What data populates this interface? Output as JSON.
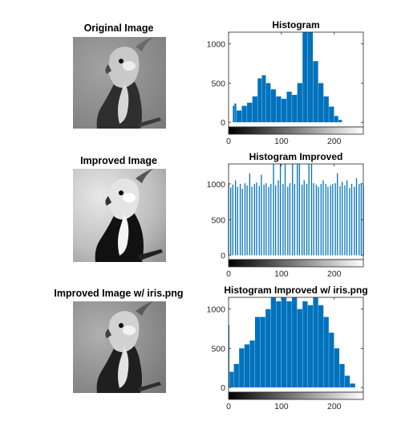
{
  "figure_titles": {
    "original": "Original Image",
    "improved": "Improved Image",
    "improved_iris": "Improved Image w/ iris.png"
  },
  "colors": {
    "bar": "#0072BD",
    "axis": "#262626"
  },
  "chart_data": [
    {
      "type": "bar",
      "title": "Histogram",
      "xlabel": "",
      "ylabel": "",
      "xlim": [
        0,
        255
      ],
      "ylim": [
        -60,
        1150
      ],
      "xticks": [
        "0",
        "100",
        "200"
      ],
      "yticks": [
        "0",
        "500",
        "1000"
      ],
      "grid": false,
      "colorbar": "grayscale 0-255",
      "bins": [
        {
          "range": [
            0,
            7
          ],
          "value": 0
        },
        {
          "range": [
            8,
            10
          ],
          "value": 210
        },
        {
          "range": [
            11,
            14
          ],
          "value": 240
        },
        {
          "range": [
            15,
            24
          ],
          "value": 150
        },
        {
          "range": [
            25,
            34
          ],
          "value": 210
        },
        {
          "range": [
            35,
            44
          ],
          "value": 250
        },
        {
          "range": [
            45,
            54
          ],
          "value": 330
        },
        {
          "range": [
            55,
            62
          ],
          "value": 560
        },
        {
          "range": [
            63,
            70
          ],
          "value": 600
        },
        {
          "range": [
            71,
            79
          ],
          "value": 500
        },
        {
          "range": [
            80,
            89
          ],
          "value": 420
        },
        {
          "range": [
            90,
            99
          ],
          "value": 330
        },
        {
          "range": [
            100,
            109
          ],
          "value": 300
        },
        {
          "range": [
            110,
            119
          ],
          "value": 390
        },
        {
          "range": [
            120,
            129
          ],
          "value": 350
        },
        {
          "range": [
            130,
            139
          ],
          "value": 500
        },
        {
          "range": [
            140,
            149
          ],
          "value": 1150
        },
        {
          "range": [
            150,
            159
          ],
          "value": 1150
        },
        {
          "range": [
            160,
            169
          ],
          "value": 780
        },
        {
          "range": [
            170,
            179
          ],
          "value": 500
        },
        {
          "range": [
            180,
            189
          ],
          "value": 330
        },
        {
          "range": [
            190,
            199
          ],
          "value": 200
        },
        {
          "range": [
            200,
            207
          ],
          "value": 80
        },
        {
          "range": [
            208,
            214
          ],
          "value": 30
        },
        {
          "range": [
            215,
            255
          ],
          "value": 0
        }
      ]
    },
    {
      "type": "bar",
      "title": "Histogram Improved",
      "xlabel": "",
      "ylabel": "",
      "xlim": [
        0,
        255
      ],
      "ylim": [
        -60,
        1280
      ],
      "xticks": [
        "0",
        "100",
        "200"
      ],
      "yticks": [
        "0",
        "500",
        "1000"
      ],
      "grid": false,
      "colorbar": "grayscale 0-255",
      "spikes": {
        "positions": [
          0,
          4,
          8,
          13,
          17,
          22,
          26,
          31,
          35,
          40,
          44,
          49,
          53,
          58,
          62,
          67,
          71,
          76,
          80,
          85,
          89,
          94,
          98,
          103,
          107,
          112,
          116,
          121,
          125,
          130,
          134,
          139,
          143,
          148,
          152,
          157,
          161,
          166,
          170,
          175,
          179,
          184,
          188,
          193,
          197,
          202,
          206,
          211,
          215,
          220,
          224,
          229,
          233,
          238,
          242,
          247,
          251,
          255
        ],
        "values": [
          1010,
          950,
          990,
          1050,
          960,
          1000,
          930,
          1010,
          980,
          1150,
          960,
          1000,
          1020,
          970,
          1130,
          990,
          1010,
          960,
          1000,
          1280,
          980,
          1050,
          1280,
          1000,
          1280,
          960,
          1010,
          1280,
          1000,
          1280,
          1280,
          990,
          1050,
          1000,
          1280,
          1280,
          1010,
          990,
          960,
          1000,
          1050,
          1000,
          960,
          980,
          1000,
          1010,
          1150,
          970,
          1030,
          980,
          1050,
          940,
          1000,
          960,
          1080,
          1000,
          1010,
          980
        ]
      }
    },
    {
      "type": "bar",
      "title": "Histogram Improved w/ iris.png",
      "xlabel": "",
      "ylabel": "",
      "xlim": [
        0,
        255
      ],
      "ylim": [
        -60,
        1150
      ],
      "xticks": [
        "0",
        "100",
        "200"
      ],
      "yticks": [
        "0",
        "500",
        "1000"
      ],
      "grid": false,
      "colorbar": "grayscale 0-255",
      "bins": [
        {
          "range": [
            0,
            1
          ],
          "value": 800
        },
        {
          "range": [
            2,
            9
          ],
          "value": 200
        },
        {
          "range": [
            10,
            19
          ],
          "value": 300
        },
        {
          "range": [
            20,
            29
          ],
          "value": 500
        },
        {
          "range": [
            30,
            39
          ],
          "value": 550
        },
        {
          "range": [
            40,
            49
          ],
          "value": 600
        },
        {
          "range": [
            50,
            59
          ],
          "value": 900
        },
        {
          "range": [
            60,
            69
          ],
          "value": 900
        },
        {
          "range": [
            70,
            79
          ],
          "value": 1000
        },
        {
          "range": [
            80,
            89
          ],
          "value": 1150
        },
        {
          "range": [
            90,
            99
          ],
          "value": 1100
        },
        {
          "range": [
            100,
            109
          ],
          "value": 1150
        },
        {
          "range": [
            110,
            119
          ],
          "value": 1100
        },
        {
          "range": [
            120,
            129
          ],
          "value": 1150
        },
        {
          "range": [
            130,
            139
          ],
          "value": 1000
        },
        {
          "range": [
            140,
            149
          ],
          "value": 1100
        },
        {
          "range": [
            150,
            159
          ],
          "value": 1050
        },
        {
          "range": [
            160,
            169
          ],
          "value": 1150
        },
        {
          "range": [
            170,
            179
          ],
          "value": 1050
        },
        {
          "range": [
            180,
            189
          ],
          "value": 900
        },
        {
          "range": [
            190,
            199
          ],
          "value": 700
        },
        {
          "range": [
            200,
            209
          ],
          "value": 500
        },
        {
          "range": [
            210,
            219
          ],
          "value": 300
        },
        {
          "range": [
            220,
            229
          ],
          "value": 150
        },
        {
          "range": [
            230,
            239
          ],
          "value": 50
        },
        {
          "range": [
            240,
            255
          ],
          "value": 0
        }
      ]
    }
  ]
}
